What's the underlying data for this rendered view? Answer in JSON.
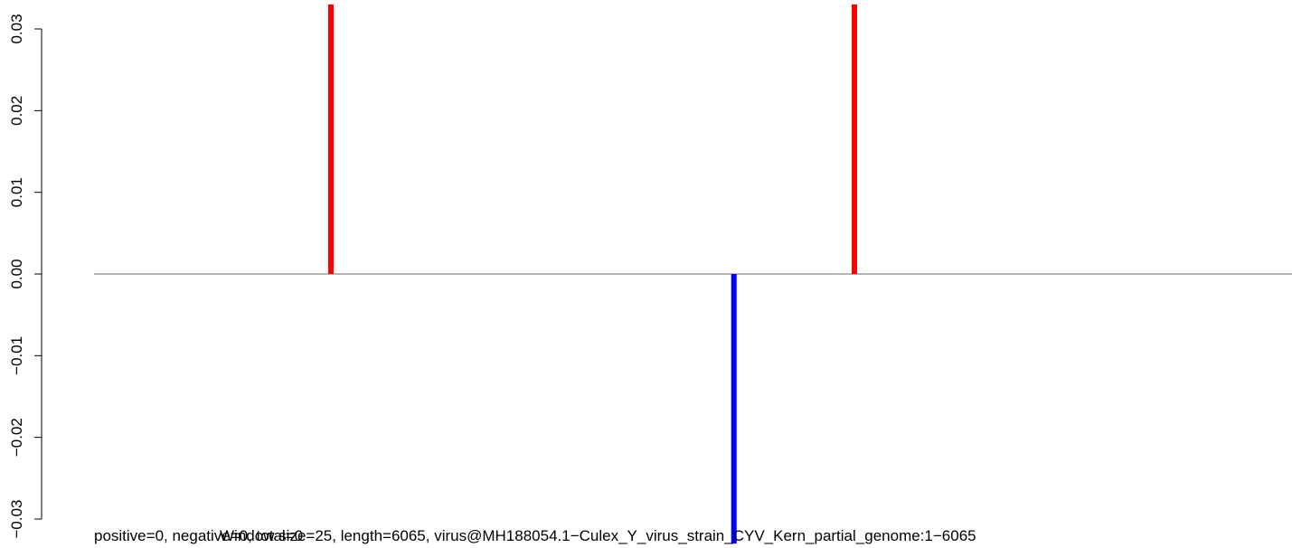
{
  "chart_data": {
    "type": "bar",
    "ylim": [
      -0.03,
      0.03
    ],
    "yticks": [
      "-0.03",
      "-0.02",
      "-0.01",
      "0.00",
      "0.01",
      "0.02",
      "0.03"
    ],
    "ytick_values": [
      -0.03,
      -0.02,
      -0.01,
      0.0,
      0.01,
      0.02,
      0.03
    ],
    "xlim": [
      1,
      6065
    ],
    "grid": false,
    "baseline": 0,
    "series": [
      {
        "color": "#ff0000",
        "points": [
          {
            "x": 1200,
            "y": 0.033
          },
          {
            "x": 3850,
            "y": 0.033
          }
        ]
      },
      {
        "color": "#0000ff",
        "points": [
          {
            "x": 3240,
            "y": -0.033
          }
        ]
      }
    ],
    "annotations": {
      "left": "positive=0, negative=0, total=0",
      "right": "Window size=25, length=6065, virus@MH188054.1−Culex_Y_virus_strain_CYV_Kern_partial_genome:1−6065"
    }
  }
}
